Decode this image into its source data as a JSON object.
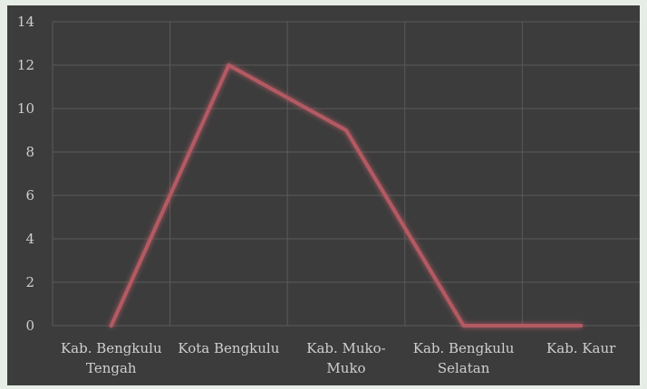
{
  "chart_data": {
    "type": "line",
    "categories": [
      [
        "Kab. Bengkulu",
        "Tengah"
      ],
      [
        "Kota Bengkulu"
      ],
      [
        "Kab. Muko-",
        "Muko"
      ],
      [
        "Kab. Bengkulu",
        "Selatan"
      ],
      [
        "Kab. Kaur"
      ]
    ],
    "series": [
      {
        "values": [
          0,
          12,
          9,
          0,
          0
        ],
        "color": "#b35a63"
      }
    ],
    "ylim": [
      0,
      14
    ],
    "yticks": [
      "0",
      "2",
      "4",
      "6",
      "8",
      "10",
      "12",
      "14"
    ],
    "grid": true,
    "legend": "none",
    "colors": {
      "plot_background": "#3c3c3c",
      "gridline": "#5a5a5a",
      "tick_text": "#cfcfcf",
      "page_background": "#e6ede6"
    }
  }
}
